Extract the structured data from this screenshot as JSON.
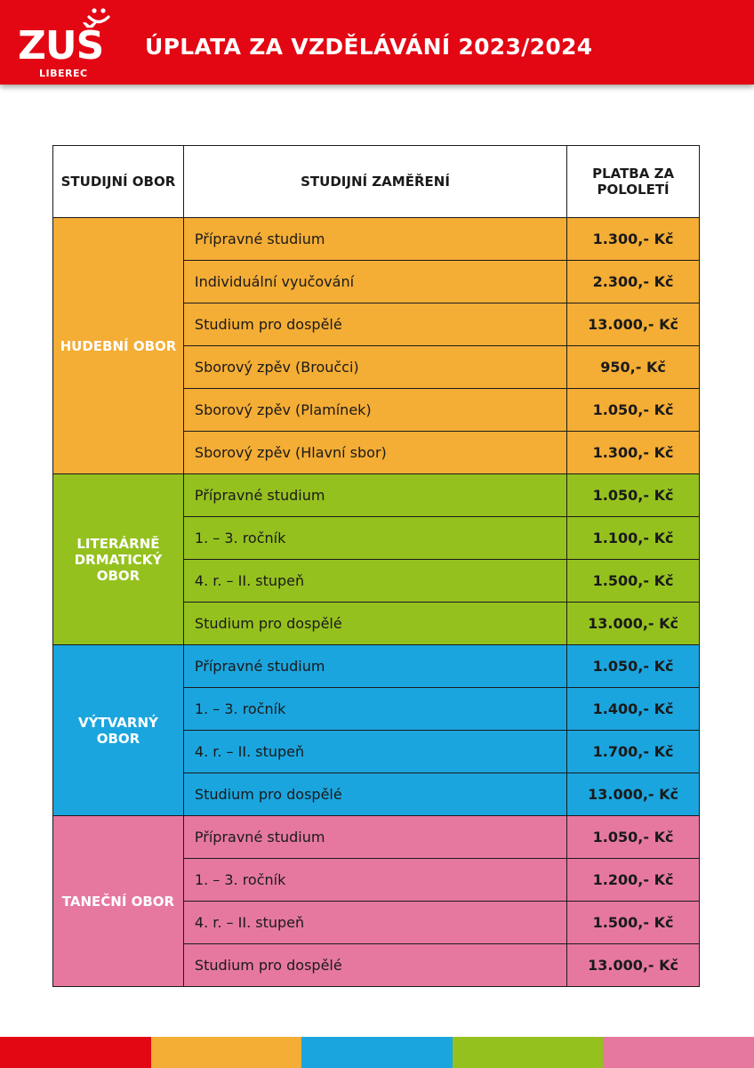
{
  "header": {
    "logo_text": "ZUŠ",
    "logo_subtitle": "LIBEREC",
    "title": "ÚPLATA ZA VZDĚLÁVÁNÍ 2023/2024"
  },
  "colors": {
    "header_red": "#e30613",
    "orange": "#f4ad35",
    "green": "#95c11f",
    "blue": "#1ba5de",
    "pink": "#e678a0"
  },
  "table": {
    "headers": [
      "STUDIJNÍ OBOR",
      "STUDIJNÍ ZAMĚŘENÍ",
      "PLATBA ZA POLOLETÍ"
    ],
    "groups": [
      {
        "name": "HUDEBNÍ OBOR",
        "color": "orange",
        "rows": [
          {
            "name": "Přípravné studium",
            "price": "1.300,- Kč"
          },
          {
            "name": "Individuální vyučování",
            "price": "2.300,- Kč"
          },
          {
            "name": "Studium pro dospělé",
            "price": "13.000,- Kč"
          },
          {
            "name": "Sborový zpěv (Broučci)",
            "price": "950,- Kč"
          },
          {
            "name": "Sborový zpěv (Plamínek)",
            "price": "1.050,- Kč"
          },
          {
            "name": "Sborový zpěv (Hlavní sbor)",
            "price": "1.300,- Kč"
          }
        ]
      },
      {
        "name": "LITERÁRNĚ DRMATICKÝ OBOR",
        "color": "green",
        "rows": [
          {
            "name": "Přípravné studium",
            "price": "1.050,- Kč"
          },
          {
            "name": "1. – 3. ročník",
            "price": "1.100,- Kč"
          },
          {
            "name": "4. r. – II. stupeň",
            "price": "1.500,- Kč"
          },
          {
            "name": "Studium pro dospělé",
            "price": "13.000,- Kč"
          }
        ]
      },
      {
        "name": "VÝTVARNÝ OBOR",
        "color": "blue",
        "rows": [
          {
            "name": "Přípravné studium",
            "price": "1.050,- Kč"
          },
          {
            "name": "1. – 3. ročník",
            "price": "1.400,- Kč"
          },
          {
            "name": "4. r. – II. stupeň",
            "price": "1.700,- Kč"
          },
          {
            "name": "Studium pro dospělé",
            "price": "13.000,- Kč"
          }
        ]
      },
      {
        "name": "TANEČNÍ OBOR",
        "color": "pink",
        "rows": [
          {
            "name": "Přípravné studium",
            "price": "1.050,- Kč"
          },
          {
            "name": "1. – 3. ročník",
            "price": "1.200,- Kč"
          },
          {
            "name": "4. r. – II. stupeň",
            "price": "1.500,- Kč"
          },
          {
            "name": "Studium pro dospělé",
            "price": "13.000,- Kč"
          }
        ]
      }
    ]
  },
  "footer_strip": [
    "header_red",
    "orange",
    "blue",
    "green",
    "pink"
  ]
}
